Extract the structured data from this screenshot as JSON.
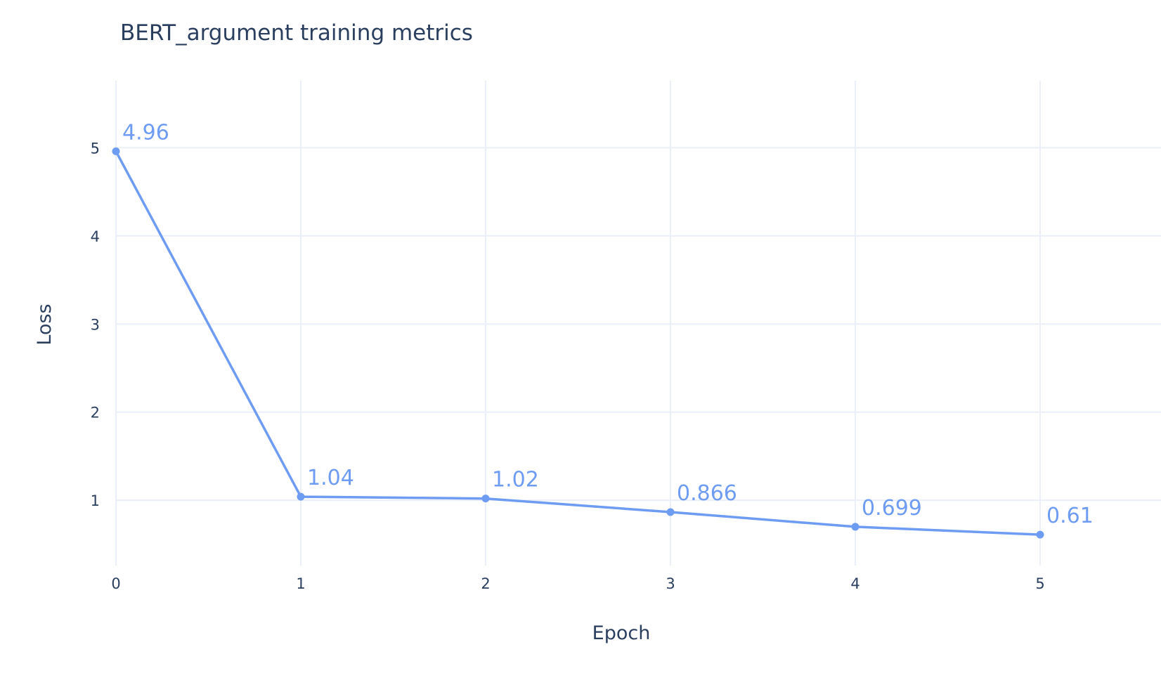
{
  "chart_data": {
    "type": "line",
    "title": "BERT_argument training metrics",
    "xlabel": "Epoch",
    "ylabel": "Loss",
    "x": [
      0,
      1,
      2,
      3,
      4,
      5
    ],
    "series": [
      {
        "values": [
          4.96,
          1.04,
          1.02,
          0.866,
          0.699,
          0.61
        ],
        "labels": [
          "4.96",
          "1.04",
          "1.02",
          "0.866",
          "0.699",
          "0.61"
        ],
        "color": "#6e9cf2",
        "mode": "lines+markers+text"
      }
    ],
    "xticks": [
      "0",
      "1",
      "2",
      "3",
      "4",
      "5"
    ],
    "yticks": [
      "1",
      "2",
      "3",
      "4",
      "5"
    ],
    "ytick_values": [
      1,
      2,
      3,
      4,
      5
    ],
    "xlim": [
      -0.04,
      5.35
    ],
    "ylim": [
      0.26,
      5.76
    ],
    "grid": true,
    "legend": "none"
  }
}
